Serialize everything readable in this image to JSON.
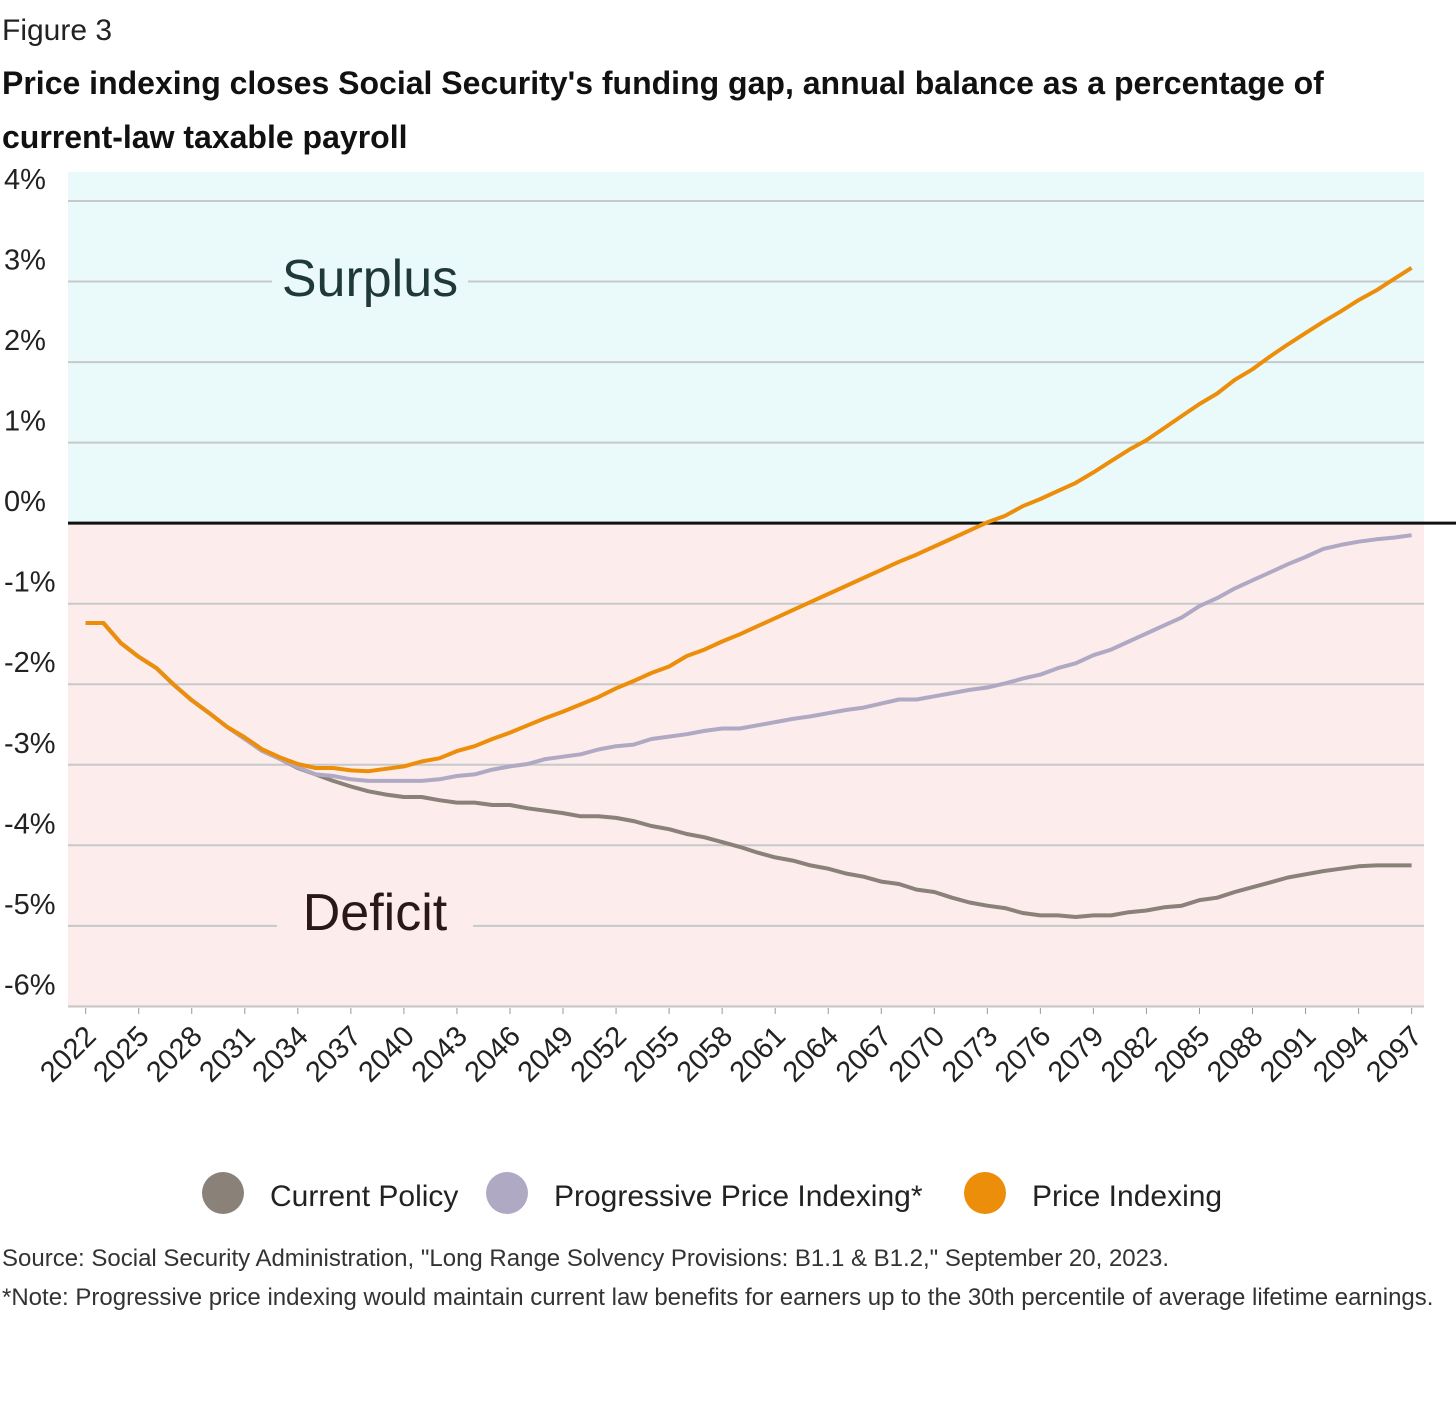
{
  "chart_data": {
    "type": "line",
    "figure_label": "Figure 3",
    "title": "Price indexing closes Social Security's funding gap, annual balance as a percentage of current-law taxable payroll",
    "annotations": [
      "Surplus",
      "Deficit"
    ],
    "source": "Source: Social Security Administration, \"Long Range Solvency Provisions: B1.1 & B1.2,\" September 20, 2023.",
    "note": "*Note: Progressive price indexing would maintain current law benefits for earners up to the 30th percentile of average lifetime earnings.",
    "x": [
      2022,
      2023,
      2024,
      2025,
      2026,
      2027,
      2028,
      2029,
      2030,
      2031,
      2032,
      2033,
      2034,
      2035,
      2036,
      2037,
      2038,
      2039,
      2040,
      2041,
      2042,
      2043,
      2044,
      2045,
      2046,
      2047,
      2048,
      2049,
      2050,
      2051,
      2052,
      2053,
      2054,
      2055,
      2056,
      2057,
      2058,
      2059,
      2060,
      2061,
      2062,
      2063,
      2064,
      2065,
      2066,
      2067,
      2068,
      2069,
      2070,
      2071,
      2072,
      2073,
      2074,
      2075,
      2076,
      2077,
      2078,
      2079,
      2080,
      2081,
      2082,
      2083,
      2084,
      2085,
      2086,
      2087,
      2088,
      2089,
      2090,
      2091,
      2092,
      2093,
      2094,
      2095,
      2096,
      2097
    ],
    "xlim": [
      2021,
      2097.7
    ],
    "xticks": [
      2022,
      2025,
      2028,
      2031,
      2034,
      2037,
      2040,
      2043,
      2046,
      2049,
      2052,
      2055,
      2058,
      2061,
      2064,
      2067,
      2070,
      2073,
      2076,
      2079,
      2082,
      2085,
      2088,
      2091,
      2094,
      2097
    ],
    "ylim": [
      -6.02,
      4.36
    ],
    "yticks": [
      {
        "value": -6,
        "label": "-6%"
      },
      {
        "value": -5,
        "label": "-5%"
      },
      {
        "value": -4,
        "label": "-4%"
      },
      {
        "value": -3,
        "label": "-3%"
      },
      {
        "value": -2,
        "label": "-2%"
      },
      {
        "value": -1,
        "label": "-1%"
      },
      {
        "value": 0,
        "label": "0%"
      },
      {
        "value": 1,
        "label": "1%"
      },
      {
        "value": 2,
        "label": "2%"
      },
      {
        "value": 3,
        "label": "3%"
      },
      {
        "value": 4,
        "label": "4%"
      }
    ],
    "grid": true,
    "series": [
      {
        "name": "Current Policy",
        "color": "#8a8178",
        "values": [
          -1.24,
          -1.24,
          -1.49,
          -1.66,
          -1.8,
          -2.01,
          -2.2,
          -2.36,
          -2.53,
          -2.68,
          -2.83,
          -2.93,
          -3.04,
          -3.12,
          -3.2,
          -3.27,
          -3.33,
          -3.37,
          -3.4,
          -3.4,
          -3.44,
          -3.47,
          -3.47,
          -3.5,
          -3.5,
          -3.54,
          -3.57,
          -3.6,
          -3.64,
          -3.64,
          -3.66,
          -3.7,
          -3.76,
          -3.8,
          -3.86,
          -3.9,
          -3.96,
          -4.02,
          -4.09,
          -4.15,
          -4.19,
          -4.25,
          -4.29,
          -4.35,
          -4.39,
          -4.45,
          -4.48,
          -4.55,
          -4.58,
          -4.65,
          -4.71,
          -4.75,
          -4.78,
          -4.84,
          -4.87,
          -4.87,
          -4.89,
          -4.87,
          -4.87,
          -4.83,
          -4.81,
          -4.77,
          -4.75,
          -4.68,
          -4.65,
          -4.58,
          -4.52,
          -4.46,
          -4.4,
          -4.36,
          -4.32,
          -4.29,
          -4.26,
          -4.25,
          -4.25,
          -4.25
        ]
      },
      {
        "name": "Progressive Price Indexing*",
        "color": "#b0a9c4",
        "values": [
          -1.24,
          -1.24,
          -1.49,
          -1.66,
          -1.8,
          -2.01,
          -2.2,
          -2.36,
          -2.53,
          -2.68,
          -2.83,
          -2.93,
          -3.03,
          -3.12,
          -3.14,
          -3.18,
          -3.2,
          -3.2,
          -3.2,
          -3.2,
          -3.18,
          -3.14,
          -3.12,
          -3.06,
          -3.02,
          -2.99,
          -2.93,
          -2.9,
          -2.87,
          -2.81,
          -2.77,
          -2.75,
          -2.68,
          -2.65,
          -2.62,
          -2.58,
          -2.55,
          -2.55,
          -2.51,
          -2.47,
          -2.43,
          -2.4,
          -2.36,
          -2.32,
          -2.29,
          -2.24,
          -2.19,
          -2.19,
          -2.15,
          -2.11,
          -2.07,
          -2.04,
          -1.99,
          -1.93,
          -1.88,
          -1.8,
          -1.74,
          -1.64,
          -1.57,
          -1.47,
          -1.37,
          -1.27,
          -1.17,
          -1.03,
          -0.93,
          -0.81,
          -0.71,
          -0.61,
          -0.51,
          -0.42,
          -0.32,
          -0.27,
          -0.23,
          -0.2,
          -0.18,
          -0.15
        ]
      },
      {
        "name": "Price Indexing",
        "color": "#ec8e0a",
        "values": [
          -1.24,
          -1.24,
          -1.49,
          -1.66,
          -1.8,
          -2.01,
          -2.2,
          -2.36,
          -2.53,
          -2.66,
          -2.81,
          -2.91,
          -2.99,
          -3.04,
          -3.04,
          -3.07,
          -3.08,
          -3.05,
          -3.02,
          -2.96,
          -2.92,
          -2.83,
          -2.77,
          -2.68,
          -2.6,
          -2.51,
          -2.42,
          -2.34,
          -2.25,
          -2.16,
          -2.05,
          -1.96,
          -1.86,
          -1.78,
          -1.65,
          -1.57,
          -1.47,
          -1.38,
          -1.28,
          -1.18,
          -1.08,
          -0.98,
          -0.88,
          -0.78,
          -0.68,
          -0.58,
          -0.48,
          -0.39,
          -0.29,
          -0.19,
          -0.09,
          0.01,
          0.09,
          0.21,
          0.3,
          0.4,
          0.5,
          0.63,
          0.77,
          0.91,
          1.03,
          1.18,
          1.33,
          1.48,
          1.61,
          1.78,
          1.91,
          2.07,
          2.22,
          2.36,
          2.5,
          2.63,
          2.77,
          2.89,
          3.03,
          3.17
        ]
      }
    ]
  }
}
